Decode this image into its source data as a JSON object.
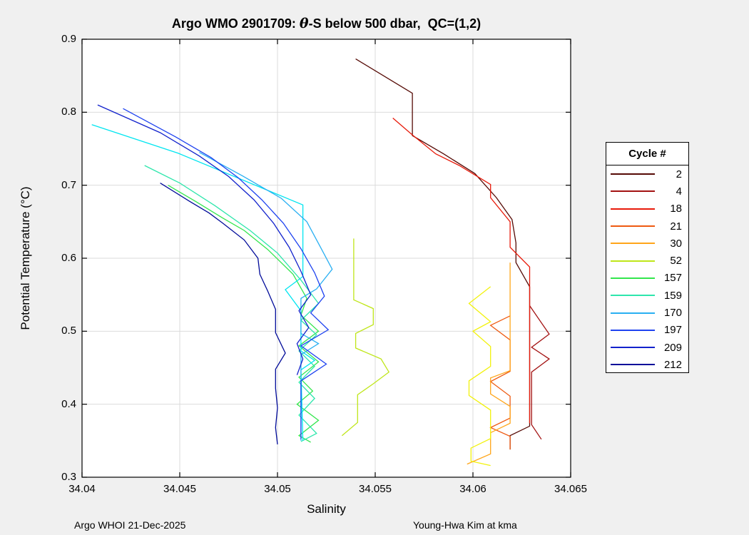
{
  "figure": {
    "title": {
      "prefix": "Argo WMO 2901709: ",
      "theta": "θ",
      "suffix": "-S below 500 dbar,  QC=(1,2)"
    },
    "xlabel": "Salinity",
    "ylabel": "Potential Temperature (°C)",
    "footer_left": "Argo WHOI 21-Dec-2025",
    "footer_right": "Young-Hwa Kim at kma",
    "background_color": "#f0f0f0",
    "plot_background_color": "#ffffff",
    "grid_color": "#dbdbdb",
    "axis_color": "#000000"
  },
  "legend": {
    "title": "Cycle #",
    "entries": [
      {
        "label": "2",
        "color": "#550a05"
      },
      {
        "label": "4",
        "color": "#a31212"
      },
      {
        "label": "18",
        "color": "#e81a0a"
      },
      {
        "label": "21",
        "color": "#ee5a11"
      },
      {
        "label": "30",
        "color": "#ffa519"
      },
      {
        "label": "52",
        "color": "#bfe619"
      },
      {
        "label": "157",
        "color": "#33e64d"
      },
      {
        "label": "159",
        "color": "#2ee6ac"
      },
      {
        "label": "170",
        "color": "#29aff2"
      },
      {
        "label": "197",
        "color": "#1f43f0"
      },
      {
        "label": "209",
        "color": "#1222cc"
      },
      {
        "label": "212",
        "color": "#000a99"
      }
    ]
  },
  "chart_data": {
    "type": "line",
    "title": "Argo WMO 2901709: θ-S below 500 dbar,  QC=(1,2)",
    "xlabel": "Salinity",
    "ylabel": "Potential Temperature (°C)",
    "xlim": [
      34.04,
      34.065
    ],
    "ylim": [
      0.3,
      0.9
    ],
    "xticks": [
      34.04,
      34.045,
      34.05,
      34.055,
      34.06,
      34.065
    ],
    "xtick_labels": [
      "34.04",
      "34.045",
      "34.05",
      "34.055",
      "34.06",
      "34.065"
    ],
    "yticks": [
      0.3,
      0.4,
      0.5,
      0.6,
      0.7,
      0.8,
      0.9
    ],
    "ytick_labels": [
      "0.3",
      "0.4",
      "0.5",
      "0.6",
      "0.7",
      "0.8",
      "0.9"
    ],
    "grid": true,
    "legend_position": "right-outside",
    "series": [
      {
        "name": "2",
        "color": "#550a05",
        "in_legend": true,
        "points": [
          [
            34.054,
            0.873
          ],
          [
            34.0569,
            0.826
          ],
          [
            34.0569,
            0.768
          ],
          [
            34.0585,
            0.743
          ],
          [
            34.0601,
            0.716
          ],
          [
            34.0612,
            0.683
          ],
          [
            34.062,
            0.653
          ],
          [
            34.0622,
            0.621
          ],
          [
            34.0622,
            0.594
          ],
          [
            34.0629,
            0.561
          ],
          [
            34.0629,
            0.37
          ],
          [
            34.0619,
            0.357
          ],
          [
            34.0619,
            0.338
          ]
        ]
      },
      {
        "name": "4",
        "color": "#a31212",
        "in_legend": true,
        "points": [
          [
            34.0629,
            0.535
          ],
          [
            34.0639,
            0.496
          ],
          [
            34.063,
            0.478
          ],
          [
            34.0639,
            0.462
          ],
          [
            34.063,
            0.444
          ],
          [
            34.063,
            0.372
          ],
          [
            34.0635,
            0.352
          ]
        ]
      },
      {
        "name": "18",
        "color": "#e81a0a",
        "in_legend": true,
        "points": [
          [
            34.0559,
            0.792
          ],
          [
            34.0569,
            0.769
          ],
          [
            34.0581,
            0.743
          ],
          [
            34.0593,
            0.727
          ],
          [
            34.0609,
            0.701
          ],
          [
            34.0609,
            0.683
          ],
          [
            34.0619,
            0.65
          ],
          [
            34.0619,
            0.615
          ],
          [
            34.0629,
            0.588
          ],
          [
            34.0629,
            0.374
          ]
        ]
      },
      {
        "name": "21",
        "color": "#ee5a11",
        "in_legend": true,
        "points": [
          [
            34.0619,
            0.521
          ],
          [
            34.0609,
            0.508
          ],
          [
            34.0619,
            0.488
          ],
          [
            34.0619,
            0.445
          ],
          [
            34.0609,
            0.431
          ],
          [
            34.0619,
            0.411
          ],
          [
            34.0619,
            0.381
          ],
          [
            34.0609,
            0.368
          ],
          [
            34.0619,
            0.356
          ],
          [
            34.0619,
            0.338
          ]
        ]
      },
      {
        "name": "30",
        "color": "#ffa519",
        "in_legend": true,
        "points": [
          [
            34.0619,
            0.594
          ],
          [
            34.0619,
            0.446
          ],
          [
            34.0609,
            0.436
          ],
          [
            34.0609,
            0.414
          ],
          [
            34.0619,
            0.397
          ],
          [
            34.0619,
            0.374
          ],
          [
            34.0609,
            0.361
          ],
          [
            34.0609,
            0.332
          ],
          [
            34.0597,
            0.318
          ]
        ]
      },
      {
        "name": "",
        "color": "#f2f20c",
        "in_legend": false,
        "points": [
          [
            34.0609,
            0.561
          ],
          [
            34.0598,
            0.538
          ],
          [
            34.0609,
            0.513
          ],
          [
            34.06,
            0.5
          ],
          [
            34.0609,
            0.479
          ],
          [
            34.0609,
            0.452
          ],
          [
            34.0598,
            0.432
          ],
          [
            34.0598,
            0.412
          ],
          [
            34.0609,
            0.392
          ],
          [
            34.0609,
            0.353
          ],
          [
            34.0599,
            0.34
          ],
          [
            34.0599,
            0.322
          ],
          [
            34.0609,
            0.316
          ]
        ]
      },
      {
        "name": "52",
        "color": "#bfe619",
        "in_legend": true,
        "points": [
          [
            34.0539,
            0.627
          ],
          [
            34.0539,
            0.543
          ],
          [
            34.0549,
            0.531
          ],
          [
            34.0549,
            0.509
          ],
          [
            34.054,
            0.497
          ],
          [
            34.054,
            0.477
          ],
          [
            34.0553,
            0.462
          ],
          [
            34.0557,
            0.444
          ],
          [
            34.0549,
            0.428
          ],
          [
            34.0541,
            0.413
          ],
          [
            34.0541,
            0.375
          ],
          [
            34.0533,
            0.357
          ]
        ]
      },
      {
        "name": "157",
        "color": "#33e64d",
        "in_legend": true,
        "points": [
          [
            34.0444,
            0.7
          ],
          [
            34.0458,
            0.678
          ],
          [
            34.0472,
            0.655
          ],
          [
            34.0483,
            0.638
          ],
          [
            34.0495,
            0.612
          ],
          [
            34.0508,
            0.578
          ],
          [
            34.0515,
            0.545
          ],
          [
            34.0512,
            0.522
          ],
          [
            34.0521,
            0.5
          ],
          [
            34.0511,
            0.48
          ],
          [
            34.0521,
            0.458
          ],
          [
            34.0511,
            0.437
          ],
          [
            34.0518,
            0.418
          ],
          [
            34.051,
            0.4
          ],
          [
            34.0521,
            0.378
          ],
          [
            34.0511,
            0.357
          ],
          [
            34.0517,
            0.348
          ]
        ]
      },
      {
        "name": "159",
        "color": "#2ee6ac",
        "in_legend": true,
        "points": [
          [
            34.0432,
            0.727
          ],
          [
            34.045,
            0.703
          ],
          [
            34.0468,
            0.672
          ],
          [
            34.0486,
            0.638
          ],
          [
            34.05,
            0.607
          ],
          [
            34.0512,
            0.57
          ],
          [
            34.0521,
            0.538
          ],
          [
            34.0512,
            0.515
          ],
          [
            34.052,
            0.495
          ],
          [
            34.0511,
            0.473
          ],
          [
            34.0519,
            0.452
          ],
          [
            34.0511,
            0.43
          ],
          [
            34.0519,
            0.408
          ],
          [
            34.0511,
            0.385
          ],
          [
            34.052,
            0.36
          ],
          [
            34.0512,
            0.349
          ]
        ]
      },
      {
        "name": "",
        "color": "#00e5f0",
        "in_legend": false,
        "points": [
          [
            34.0405,
            0.783
          ],
          [
            34.0449,
            0.744
          ],
          [
            34.0513,
            0.673
          ],
          [
            34.0513,
            0.575
          ],
          [
            34.0504,
            0.557
          ],
          [
            34.0512,
            0.528
          ],
          [
            34.0512,
            0.473
          ],
          [
            34.0519,
            0.46
          ],
          [
            34.0512,
            0.447
          ],
          [
            34.0513,
            0.35
          ]
        ]
      },
      {
        "name": "170",
        "color": "#29aff2",
        "in_legend": true,
        "points": [
          [
            34.046,
            0.745
          ],
          [
            34.0482,
            0.713
          ],
          [
            34.0502,
            0.682
          ],
          [
            34.0515,
            0.65
          ],
          [
            34.0522,
            0.615
          ],
          [
            34.0528,
            0.585
          ],
          [
            34.052,
            0.558
          ],
          [
            34.0512,
            0.545
          ],
          [
            34.0512,
            0.497
          ],
          [
            34.0521,
            0.483
          ],
          [
            34.0512,
            0.468
          ],
          [
            34.0512,
            0.35
          ]
        ]
      },
      {
        "name": "197",
        "color": "#1f43f0",
        "in_legend": true,
        "points": [
          [
            34.0421,
            0.805
          ],
          [
            34.0448,
            0.766
          ],
          [
            34.0466,
            0.738
          ],
          [
            34.048,
            0.71
          ],
          [
            34.0492,
            0.68
          ],
          [
            34.0503,
            0.648
          ],
          [
            34.0512,
            0.613
          ],
          [
            34.0519,
            0.58
          ],
          [
            34.0524,
            0.548
          ],
          [
            34.0517,
            0.525
          ],
          [
            34.0526,
            0.502
          ],
          [
            34.0512,
            0.48
          ],
          [
            34.0525,
            0.455
          ],
          [
            34.0512,
            0.432
          ],
          [
            34.0512,
            0.352
          ]
        ]
      },
      {
        "name": "209",
        "color": "#1222cc",
        "in_legend": true,
        "points": [
          [
            34.0408,
            0.81
          ],
          [
            34.044,
            0.772
          ],
          [
            34.046,
            0.74
          ],
          [
            34.0475,
            0.712
          ],
          [
            34.0488,
            0.68
          ],
          [
            34.0498,
            0.648
          ],
          [
            34.0506,
            0.615
          ],
          [
            34.0512,
            0.582
          ],
          [
            34.0517,
            0.55
          ],
          [
            34.0511,
            0.528
          ],
          [
            34.0516,
            0.505
          ],
          [
            34.051,
            0.483
          ],
          [
            34.0513,
            0.462
          ],
          [
            34.051,
            0.44
          ]
        ]
      },
      {
        "name": "212",
        "color": "#000a99",
        "in_legend": true,
        "points": [
          [
            34.044,
            0.703
          ],
          [
            34.0455,
            0.678
          ],
          [
            34.0465,
            0.662
          ],
          [
            34.0472,
            0.648
          ],
          [
            34.0483,
            0.625
          ],
          [
            34.049,
            0.6
          ],
          [
            34.0491,
            0.578
          ],
          [
            34.0495,
            0.555
          ],
          [
            34.0499,
            0.53
          ],
          [
            34.0499,
            0.498
          ],
          [
            34.0504,
            0.47
          ],
          [
            34.0499,
            0.448
          ],
          [
            34.0499,
            0.422
          ],
          [
            34.05,
            0.395
          ],
          [
            34.0499,
            0.368
          ],
          [
            34.05,
            0.345
          ]
        ]
      }
    ]
  }
}
